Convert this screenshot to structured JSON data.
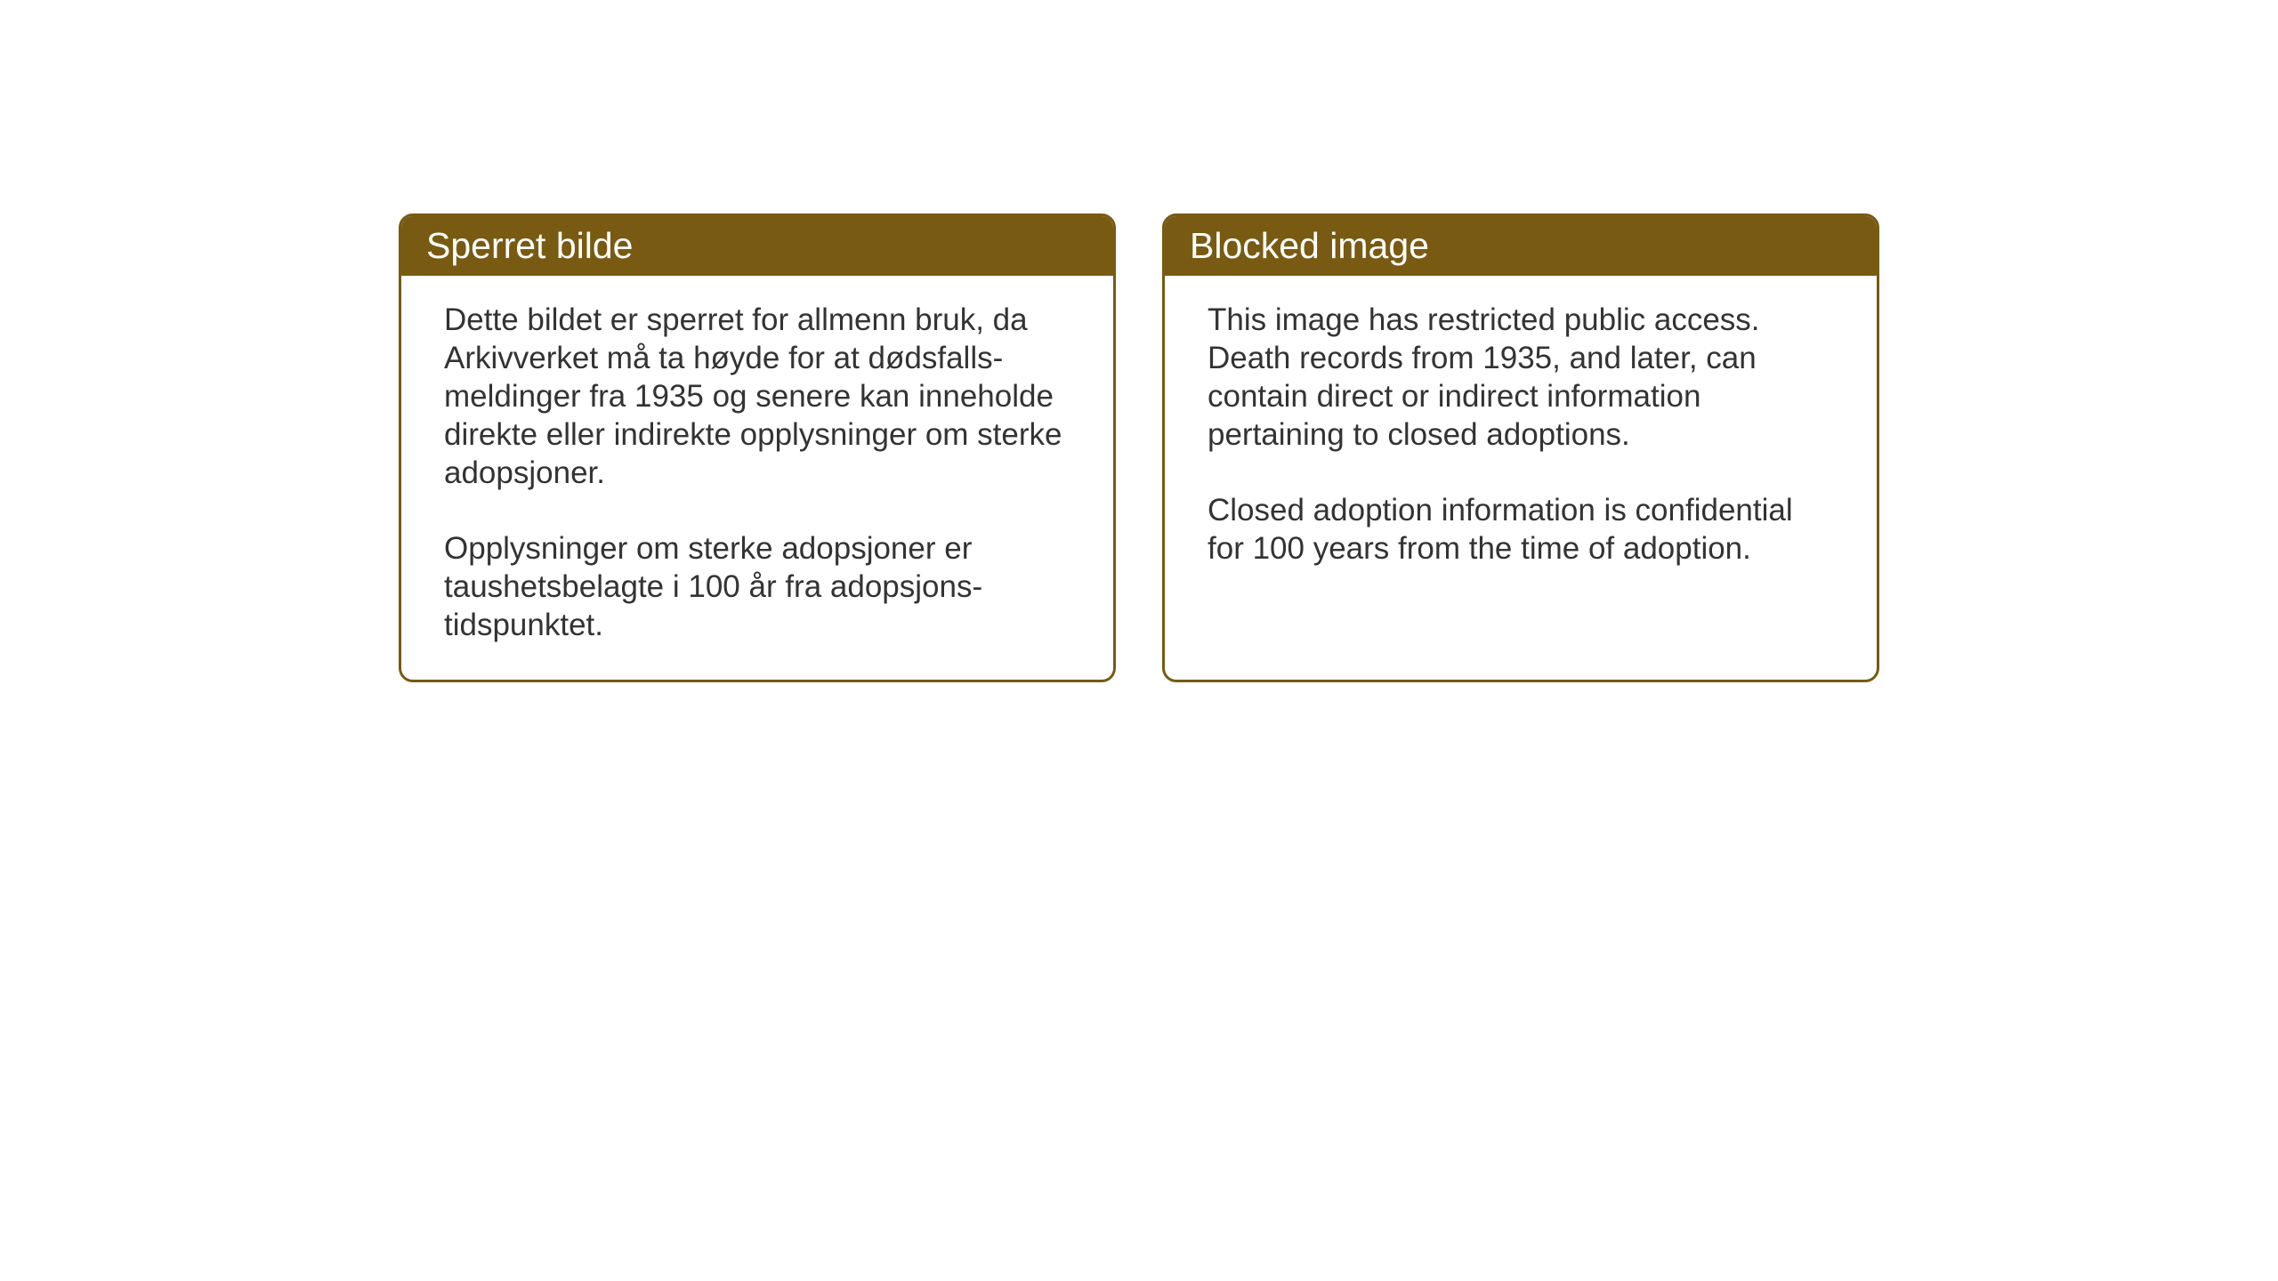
{
  "layout": {
    "background_color": "#ffffff",
    "box_border_color": "#785a12",
    "header_bg_color": "#785a12",
    "header_text_color": "#ffffff",
    "body_text_color": "#333333",
    "border_radius": 16,
    "header_fontsize": 41,
    "body_fontsize": 35
  },
  "notices": {
    "norwegian": {
      "title": "Sperret bilde",
      "paragraph1": "Dette bildet er sperret for allmenn bruk, da Arkivverket må ta høyde for at dødsfalls-meldinger fra 1935 og senere kan inneholde direkte eller indirekte opplysninger om sterke adopsjoner.",
      "paragraph2": "Opplysninger om sterke adopsjoner er taushetsbelagte i 100 år fra adopsjons-tidspunktet."
    },
    "english": {
      "title": "Blocked image",
      "paragraph1": "This image has restricted public access. Death records from 1935, and later, can contain direct or indirect information pertaining to closed adoptions.",
      "paragraph2": "Closed adoption information is confidential for 100 years from the time of adoption."
    }
  }
}
